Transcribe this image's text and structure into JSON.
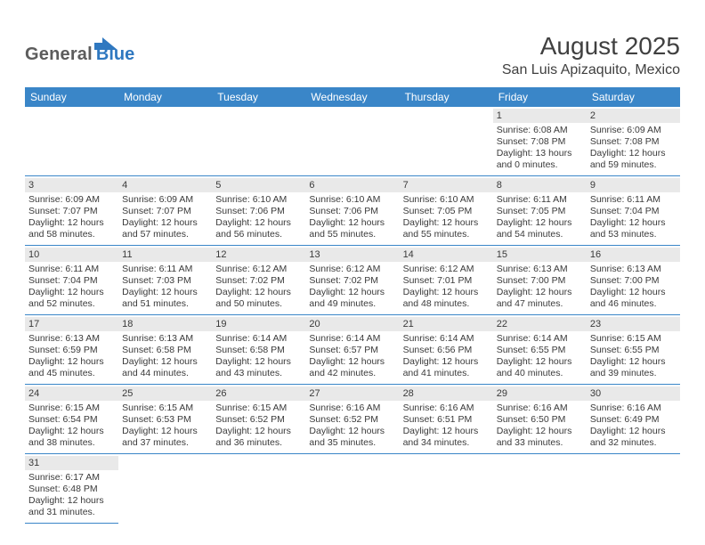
{
  "logo": {
    "dark": "General",
    "blue": "Blue"
  },
  "title": "August 2025",
  "location": "San Luis Apizaquito, Mexico",
  "colors": {
    "header_bg": "#3a86c8",
    "header_text": "#ffffff",
    "daynum_bg": "#e9e9e9",
    "rule": "#3a86c8",
    "text": "#3a3a3a",
    "logo_blue": "#2f78c0",
    "logo_dark": "#5c5c5c"
  },
  "daysOfWeek": [
    "Sunday",
    "Monday",
    "Tuesday",
    "Wednesday",
    "Thursday",
    "Friday",
    "Saturday"
  ],
  "weeks": [
    [
      null,
      null,
      null,
      null,
      null,
      {
        "n": "1",
        "sr": "6:08 AM",
        "ss": "7:08 PM",
        "dl": "13 hours and 0 minutes."
      },
      {
        "n": "2",
        "sr": "6:09 AM",
        "ss": "7:08 PM",
        "dl": "12 hours and 59 minutes."
      }
    ],
    [
      {
        "n": "3",
        "sr": "6:09 AM",
        "ss": "7:07 PM",
        "dl": "12 hours and 58 minutes."
      },
      {
        "n": "4",
        "sr": "6:09 AM",
        "ss": "7:07 PM",
        "dl": "12 hours and 57 minutes."
      },
      {
        "n": "5",
        "sr": "6:10 AM",
        "ss": "7:06 PM",
        "dl": "12 hours and 56 minutes."
      },
      {
        "n": "6",
        "sr": "6:10 AM",
        "ss": "7:06 PM",
        "dl": "12 hours and 55 minutes."
      },
      {
        "n": "7",
        "sr": "6:10 AM",
        "ss": "7:05 PM",
        "dl": "12 hours and 55 minutes."
      },
      {
        "n": "8",
        "sr": "6:11 AM",
        "ss": "7:05 PM",
        "dl": "12 hours and 54 minutes."
      },
      {
        "n": "9",
        "sr": "6:11 AM",
        "ss": "7:04 PM",
        "dl": "12 hours and 53 minutes."
      }
    ],
    [
      {
        "n": "10",
        "sr": "6:11 AM",
        "ss": "7:04 PM",
        "dl": "12 hours and 52 minutes."
      },
      {
        "n": "11",
        "sr": "6:11 AM",
        "ss": "7:03 PM",
        "dl": "12 hours and 51 minutes."
      },
      {
        "n": "12",
        "sr": "6:12 AM",
        "ss": "7:02 PM",
        "dl": "12 hours and 50 minutes."
      },
      {
        "n": "13",
        "sr": "6:12 AM",
        "ss": "7:02 PM",
        "dl": "12 hours and 49 minutes."
      },
      {
        "n": "14",
        "sr": "6:12 AM",
        "ss": "7:01 PM",
        "dl": "12 hours and 48 minutes."
      },
      {
        "n": "15",
        "sr": "6:13 AM",
        "ss": "7:00 PM",
        "dl": "12 hours and 47 minutes."
      },
      {
        "n": "16",
        "sr": "6:13 AM",
        "ss": "7:00 PM",
        "dl": "12 hours and 46 minutes."
      }
    ],
    [
      {
        "n": "17",
        "sr": "6:13 AM",
        "ss": "6:59 PM",
        "dl": "12 hours and 45 minutes."
      },
      {
        "n": "18",
        "sr": "6:13 AM",
        "ss": "6:58 PM",
        "dl": "12 hours and 44 minutes."
      },
      {
        "n": "19",
        "sr": "6:14 AM",
        "ss": "6:58 PM",
        "dl": "12 hours and 43 minutes."
      },
      {
        "n": "20",
        "sr": "6:14 AM",
        "ss": "6:57 PM",
        "dl": "12 hours and 42 minutes."
      },
      {
        "n": "21",
        "sr": "6:14 AM",
        "ss": "6:56 PM",
        "dl": "12 hours and 41 minutes."
      },
      {
        "n": "22",
        "sr": "6:14 AM",
        "ss": "6:55 PM",
        "dl": "12 hours and 40 minutes."
      },
      {
        "n": "23",
        "sr": "6:15 AM",
        "ss": "6:55 PM",
        "dl": "12 hours and 39 minutes."
      }
    ],
    [
      {
        "n": "24",
        "sr": "6:15 AM",
        "ss": "6:54 PM",
        "dl": "12 hours and 38 minutes."
      },
      {
        "n": "25",
        "sr": "6:15 AM",
        "ss": "6:53 PM",
        "dl": "12 hours and 37 minutes."
      },
      {
        "n": "26",
        "sr": "6:15 AM",
        "ss": "6:52 PM",
        "dl": "12 hours and 36 minutes."
      },
      {
        "n": "27",
        "sr": "6:16 AM",
        "ss": "6:52 PM",
        "dl": "12 hours and 35 minutes."
      },
      {
        "n": "28",
        "sr": "6:16 AM",
        "ss": "6:51 PM",
        "dl": "12 hours and 34 minutes."
      },
      {
        "n": "29",
        "sr": "6:16 AM",
        "ss": "6:50 PM",
        "dl": "12 hours and 33 minutes."
      },
      {
        "n": "30",
        "sr": "6:16 AM",
        "ss": "6:49 PM",
        "dl": "12 hours and 32 minutes."
      }
    ],
    [
      {
        "n": "31",
        "sr": "6:17 AM",
        "ss": "6:48 PM",
        "dl": "12 hours and 31 minutes."
      },
      null,
      null,
      null,
      null,
      null,
      null
    ]
  ],
  "labels": {
    "sunrise": "Sunrise: ",
    "sunset": "Sunset: ",
    "daylight": "Daylight: "
  }
}
